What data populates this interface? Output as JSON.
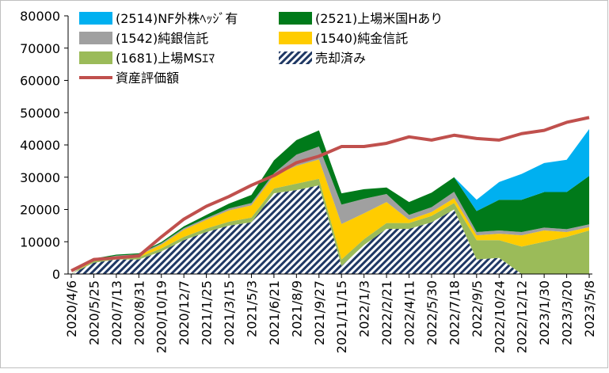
{
  "chart_data": {
    "type": "area",
    "title": "",
    "xlabel": "",
    "ylabel": "",
    "ylim": [
      0,
      80000
    ],
    "yticks": [
      0,
      10000,
      20000,
      30000,
      40000,
      50000,
      60000,
      70000,
      80000
    ],
    "grid": false,
    "legend_placement": "top-left",
    "x": [
      "2020/4/6",
      "2020/5/25",
      "2020/7/13",
      "2020/8/31",
      "2020/10/19",
      "2020/12/7",
      "2021/1/25",
      "2021/3/15",
      "2021/5/3",
      "2021/6/21",
      "2021/8/9",
      "2021/9/27",
      "2021/11/15",
      "2022/1/3",
      "2022/2/21",
      "2022/4/11",
      "2022/5/30",
      "2022/7/18",
      "2022/9/5",
      "2022/10/24",
      "2022/12/12",
      "2023/1/30",
      "2023/3/20",
      "2023/5/8"
    ],
    "series": [
      {
        "name": "売却済み",
        "pattern": "hatch",
        "color": "#1f3864",
        "values": [
          0,
          3500,
          4500,
          4500,
          7000,
          10500,
          13000,
          15000,
          16000,
          25000,
          26000,
          27500,
          2500,
          9000,
          14000,
          14000,
          16000,
          20000,
          4500,
          5000,
          0,
          0,
          0,
          0
        ]
      },
      {
        "name": "(1681)上場MSｴﾏ",
        "color": "#9bbb59",
        "values": [
          0,
          500,
          600,
          700,
          900,
          1000,
          1100,
          1200,
          1500,
          1500,
          2000,
          2000,
          2000,
          1800,
          1800,
          1800,
          2000,
          2000,
          6000,
          5500,
          8500,
          10000,
          11500,
          13500
        ]
      },
      {
        "name": "(1540)純金信託",
        "color": "#ffcc00",
        "values": [
          0,
          300,
          400,
          600,
          1200,
          2200,
          2700,
          3500,
          3800,
          4000,
          5500,
          6000,
          11000,
          8000,
          6500,
          1000,
          1200,
          1500,
          1500,
          2000,
          3500,
          3500,
          1500,
          1000
        ]
      },
      {
        "name": "(1542)純銀信託",
        "color": "#a0a0a0",
        "values": [
          0,
          200,
          200,
          300,
          400,
          500,
          500,
          600,
          700,
          700,
          3500,
          4000,
          6000,
          4500,
          2500,
          1500,
          1500,
          2000,
          1000,
          1000,
          1000,
          900,
          900,
          900
        ]
      },
      {
        "name": "(2521)上場米国Hあり",
        "color": "#007a1a",
        "values": [
          0,
          300,
          300,
          300,
          400,
          600,
          1000,
          1500,
          2500,
          4000,
          4500,
          5000,
          3500,
          3000,
          2000,
          4000,
          4500,
          4500,
          6500,
          9500,
          10000,
          11000,
          11500,
          15000
        ]
      },
      {
        "name": "(2514)NF外株ﾍｯｼﾞ有",
        "color": "#00b0f0",
        "values": [
          0,
          0,
          0,
          0,
          0,
          0,
          0,
          0,
          0,
          0,
          0,
          0,
          0,
          0,
          0,
          0,
          0,
          0,
          3500,
          5500,
          8000,
          9000,
          10000,
          14500
        ]
      },
      {
        "name": "資産評価額",
        "type": "line",
        "color": "#c0504d",
        "values": [
          1000,
          4500,
          5000,
          5600,
          11500,
          17000,
          21000,
          24000,
          27500,
          30500,
          34500,
          36500,
          39500,
          39500,
          40500,
          42500,
          41500,
          43000,
          42000,
          41500,
          43500,
          44500,
          47000,
          48500
        ]
      }
    ]
  }
}
